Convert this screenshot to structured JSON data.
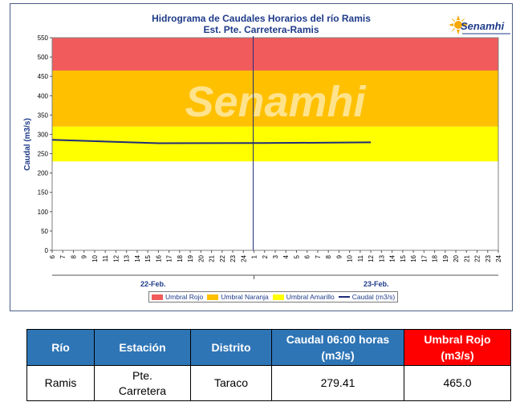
{
  "chart_data": {
    "type": "line",
    "title": "Hidrograma de Caudales Horarios del río Ramis",
    "subtitle": "Est. Pte. Carretera-Ramis",
    "ylabel": "Caudal  (m3/s)",
    "ylim": [
      0,
      550
    ],
    "yticks": [
      0,
      50,
      100,
      150,
      200,
      250,
      300,
      350,
      400,
      450,
      500,
      550
    ],
    "xtick_labels": [
      "6",
      "7",
      "8",
      "9",
      "10",
      "11",
      "12",
      "13",
      "14",
      "15",
      "16",
      "17",
      "18",
      "19",
      "20",
      "21",
      "22",
      "23",
      "24",
      "1",
      "2",
      "3",
      "4",
      "5",
      "6",
      "7",
      "8",
      "9",
      "10",
      "11",
      "12",
      "13",
      "14",
      "15",
      "16",
      "17",
      "18",
      "19",
      "20",
      "21",
      "22",
      "23",
      "24"
    ],
    "day_labels": [
      "22-Feb.",
      "23-Feb."
    ],
    "thresholds": [
      {
        "name": "Umbral Rojo",
        "from": 465,
        "to": 550,
        "color": "#f15b5b"
      },
      {
        "name": "Umbral Naranja",
        "from": 320,
        "to": 465,
        "color": "#ffc000"
      },
      {
        "name": "Umbral Amarillo",
        "from": 230,
        "to": 320,
        "color": "#ffff00"
      }
    ],
    "series": [
      {
        "name": "Caudal (m3/s)",
        "color": "#1f2d7a",
        "x_index": [
          0,
          10,
          20,
          30
        ],
        "values": [
          286,
          277,
          277.5,
          279.41
        ]
      }
    ],
    "current_time_index": 19,
    "watermark": "Senamhi",
    "legend_position": "bottom"
  },
  "logo": {
    "text": "Senamhi"
  },
  "table": {
    "headers": {
      "rio": "Río",
      "estacion": "Estación",
      "distrito": "Distrito",
      "caudal_line1": "Caudal  06:00 horas",
      "caudal_line2": "(m3/s)",
      "umbral_line1": "Umbral Rojo",
      "umbral_line2": "(m3/s)"
    },
    "row": {
      "rio": "Ramis",
      "estacion_line1": "Pte.",
      "estacion_line2": "Carretera",
      "distrito": "Taraco",
      "caudal": "279.41",
      "umbral": "465.0"
    }
  }
}
